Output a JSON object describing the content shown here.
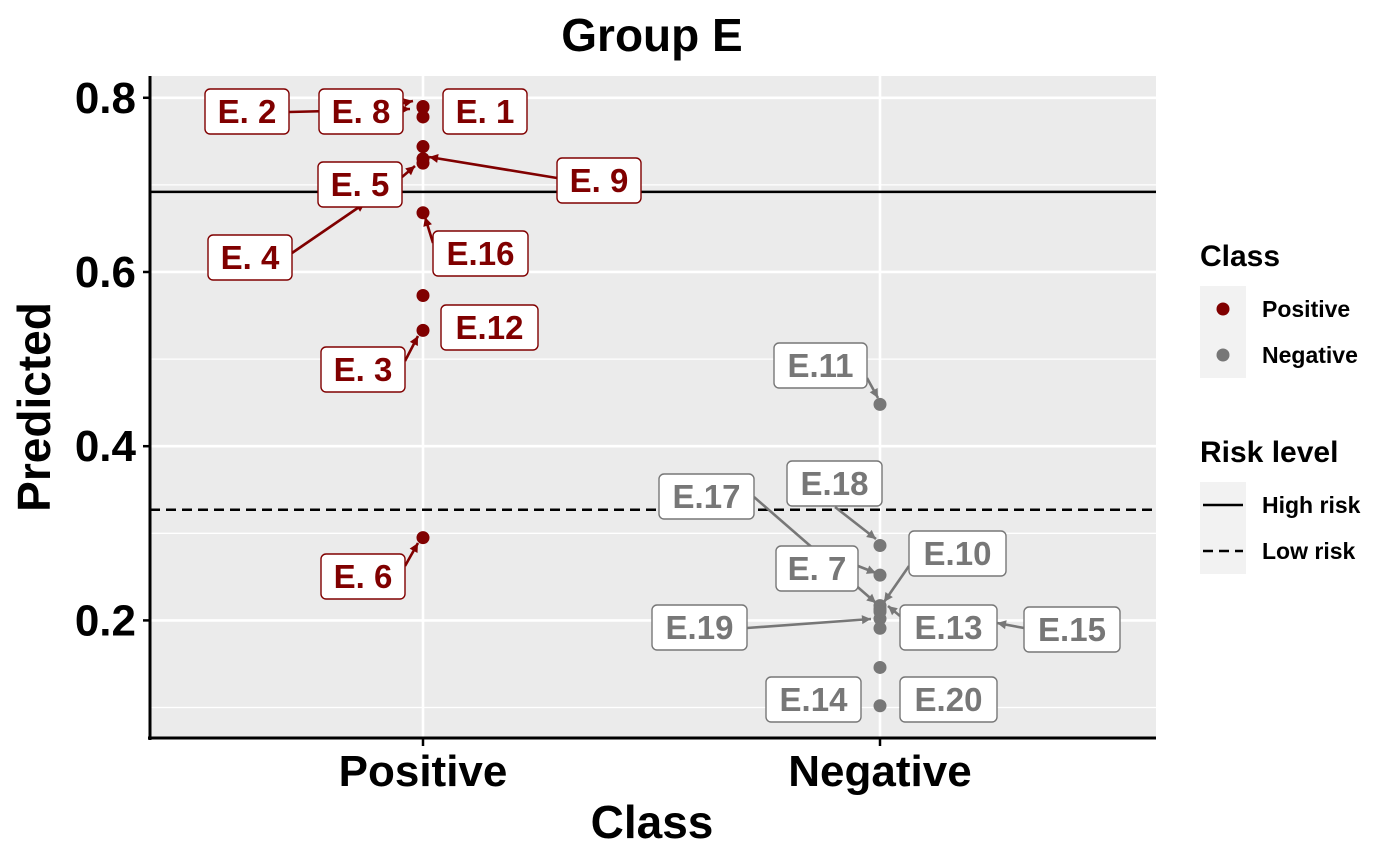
{
  "chart_data": {
    "type": "scatter",
    "title": "Group E",
    "xlabel": "Class",
    "ylabel": "Predicted",
    "categories": [
      "Positive",
      "Negative"
    ],
    "ylim": [
      0.065,
      0.825
    ],
    "yticks": [
      0.2,
      0.4,
      0.6,
      0.8
    ],
    "grid": true,
    "legend_position": "right",
    "colors": {
      "Positive": "#800000",
      "Negative": "#777777",
      "panel": "#ebebeb",
      "grid": "#ffffff"
    },
    "risk_lines": [
      {
        "name": "High risk",
        "value": 0.692,
        "style": "solid"
      },
      {
        "name": "Low risk",
        "value": 0.327,
        "style": "dashed"
      }
    ],
    "legend": {
      "class_title": "Class",
      "class_items": [
        "Positive",
        "Negative"
      ],
      "risk_title": "Risk level",
      "risk_items": [
        "High risk",
        "Low risk"
      ]
    },
    "series": [
      {
        "name": "Positive",
        "points": [
          {
            "label": "E. 1",
            "x": "Positive",
            "y": 0.79
          },
          {
            "label": "E. 2",
            "x": "Positive",
            "y": 0.778
          },
          {
            "label": "E. 8",
            "x": "Positive",
            "y": 0.789
          },
          {
            "label": "E. 9",
            "x": "Positive",
            "y": 0.73
          },
          {
            "label": "E. 5",
            "x": "Positive",
            "y": 0.744
          },
          {
            "label": "E. 4",
            "x": "Positive",
            "y": 0.725
          },
          {
            "label": "E.16",
            "x": "Positive",
            "y": 0.668
          },
          {
            "label": "E.12",
            "x": "Positive",
            "y": 0.573
          },
          {
            "label": "E. 3",
            "x": "Positive",
            "y": 0.533
          },
          {
            "label": "E. 6",
            "x": "Positive",
            "y": 0.295
          }
        ]
      },
      {
        "name": "Negative",
        "points": [
          {
            "label": "E.11",
            "x": "Negative",
            "y": 0.448
          },
          {
            "label": "E.18",
            "x": "Negative",
            "y": 0.286
          },
          {
            "label": "E.17",
            "x": "Negative",
            "y": 0.213
          },
          {
            "label": "E. 7",
            "x": "Negative",
            "y": 0.252
          },
          {
            "label": "E.10",
            "x": "Negative",
            "y": 0.217
          },
          {
            "label": "E.19",
            "x": "Negative",
            "y": 0.202
          },
          {
            "label": "E.13",
            "x": "Negative",
            "y": 0.21
          },
          {
            "label": "E.15",
            "x": "Negative",
            "y": 0.191
          },
          {
            "label": "E.14",
            "x": "Negative",
            "y": 0.146
          },
          {
            "label": "E.20",
            "x": "Negative",
            "y": 0.102
          }
        ]
      }
    ]
  }
}
